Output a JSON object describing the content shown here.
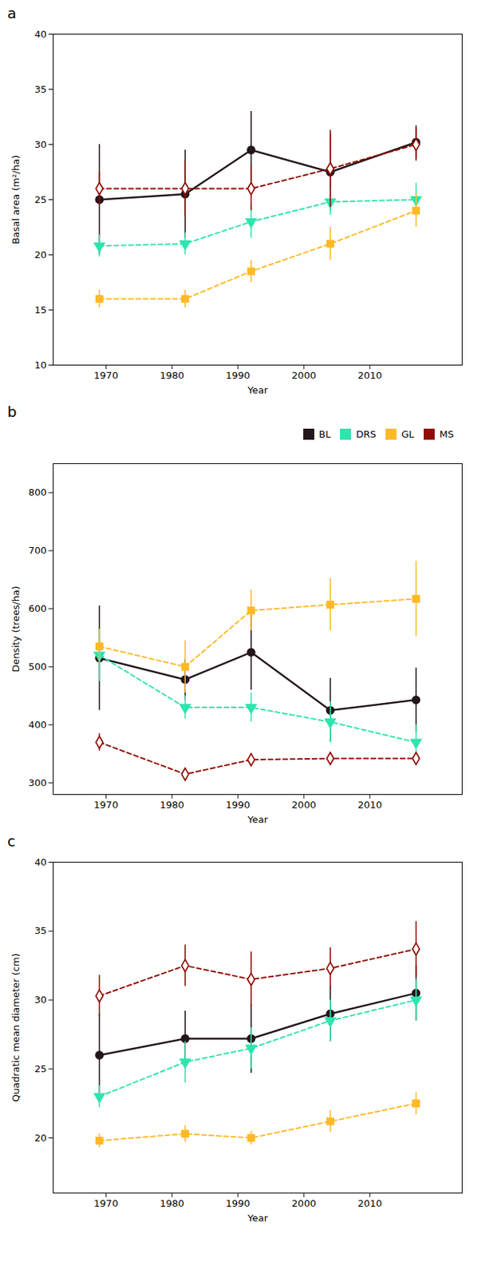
{
  "chart_data": [
    {
      "type": "line",
      "title": "a",
      "x": [
        1969,
        1982,
        1992,
        2004,
        2017
      ],
      "xlabel": "Year",
      "ylabel": "Basal area (m²/ha)",
      "xlim": [
        1962,
        2024
      ],
      "xticks": [
        1970,
        1980,
        1990,
        2000,
        2010
      ],
      "ylim": [
        10,
        40
      ],
      "yticks": [
        10,
        15,
        20,
        25,
        30,
        35,
        40
      ],
      "series": [
        {
          "name": "BL",
          "values": [
            25.0,
            25.5,
            29.5,
            27.5,
            30.2
          ],
          "yerr": [
            5.0,
            4.0,
            3.5,
            3.5,
            1.5
          ],
          "marker": "circle",
          "line_style": "solid"
        },
        {
          "name": "DRS",
          "values": [
            20.8,
            21.0,
            23.0,
            24.8,
            25.0
          ],
          "yerr": [
            1.0,
            1.0,
            1.5,
            1.2,
            1.5
          ],
          "marker": "triangle-down",
          "line_style": "dashed"
        },
        {
          "name": "GL",
          "values": [
            16.0,
            16.0,
            18.5,
            21.0,
            24.0
          ],
          "yerr": [
            0.8,
            0.8,
            1.0,
            1.5,
            1.5
          ],
          "marker": "square",
          "line_style": "dashed"
        },
        {
          "name": "MS",
          "values": [
            26.0,
            26.0,
            26.0,
            27.8,
            30.0
          ],
          "yerr": [
            1.5,
            2.5,
            2.0,
            3.5,
            1.5
          ],
          "marker": "diamond-open",
          "line_style": "dashed"
        }
      ]
    },
    {
      "type": "line",
      "title": "b",
      "x": [
        1969,
        1982,
        1992,
        2004,
        2017
      ],
      "xlabel": "Year",
      "ylabel": "Density (trees/ha)",
      "xlim": [
        1962,
        2024
      ],
      "xticks": [
        1970,
        1980,
        1990,
        2000,
        2010
      ],
      "ylim": [
        280,
        850
      ],
      "yticks": [
        300,
        400,
        500,
        600,
        700,
        800
      ],
      "legend": "upper right",
      "series": [
        {
          "name": "BL",
          "values": [
            515,
            478,
            525,
            425,
            443
          ],
          "yerr": [
            90,
            35,
            65,
            55,
            55
          ],
          "marker": "circle",
          "line_style": "solid"
        },
        {
          "name": "DRS",
          "values": [
            520,
            430,
            430,
            405,
            370
          ],
          "yerr": [
            45,
            20,
            25,
            35,
            30
          ],
          "marker": "triangle-down",
          "line_style": "dashed"
        },
        {
          "name": "GL",
          "values": [
            535,
            500,
            597,
            607,
            617
          ],
          "yerr": [
            30,
            45,
            35,
            45,
            65
          ],
          "marker": "square",
          "line_style": "dashed"
        },
        {
          "name": "MS",
          "values": [
            370,
            315,
            340,
            342,
            342
          ],
          "yerr": [
            15,
            10,
            10,
            10,
            10
          ],
          "marker": "diamond-open",
          "line_style": "dashed"
        }
      ]
    },
    {
      "type": "line",
      "title": "c",
      "x": [
        1969,
        1982,
        1992,
        2004,
        2017
      ],
      "xlabel": "Year",
      "ylabel": "Quadratic mean diameter (cm)",
      "xlim": [
        1962,
        2024
      ],
      "xticks": [
        1970,
        1980,
        1990,
        2000,
        2010
      ],
      "ylim": [
        16,
        40
      ],
      "yticks": [
        20,
        25,
        30,
        35,
        40
      ],
      "series": [
        {
          "name": "BL",
          "values": [
            26.0,
            27.2,
            27.2,
            29.0,
            30.5
          ],
          "yerr": [
            3.0,
            2.0,
            2.5,
            2.0,
            2.0
          ],
          "marker": "circle",
          "line_style": "solid"
        },
        {
          "name": "DRS",
          "values": [
            23.0,
            25.5,
            26.5,
            28.5,
            30.0
          ],
          "yerr": [
            0.8,
            1.5,
            1.5,
            1.5,
            1.5
          ],
          "marker": "triangle-down",
          "line_style": "dashed"
        },
        {
          "name": "GL",
          "values": [
            19.8,
            20.3,
            20.0,
            21.2,
            22.5
          ],
          "yerr": [
            0.5,
            0.6,
            0.5,
            0.8,
            0.8
          ],
          "marker": "square",
          "line_style": "dashed"
        },
        {
          "name": "MS",
          "values": [
            30.3,
            32.5,
            31.5,
            32.3,
            33.7
          ],
          "yerr": [
            1.5,
            1.5,
            2.0,
            1.5,
            2.0
          ],
          "marker": "diamond-open",
          "line_style": "dashed"
        }
      ]
    }
  ]
}
